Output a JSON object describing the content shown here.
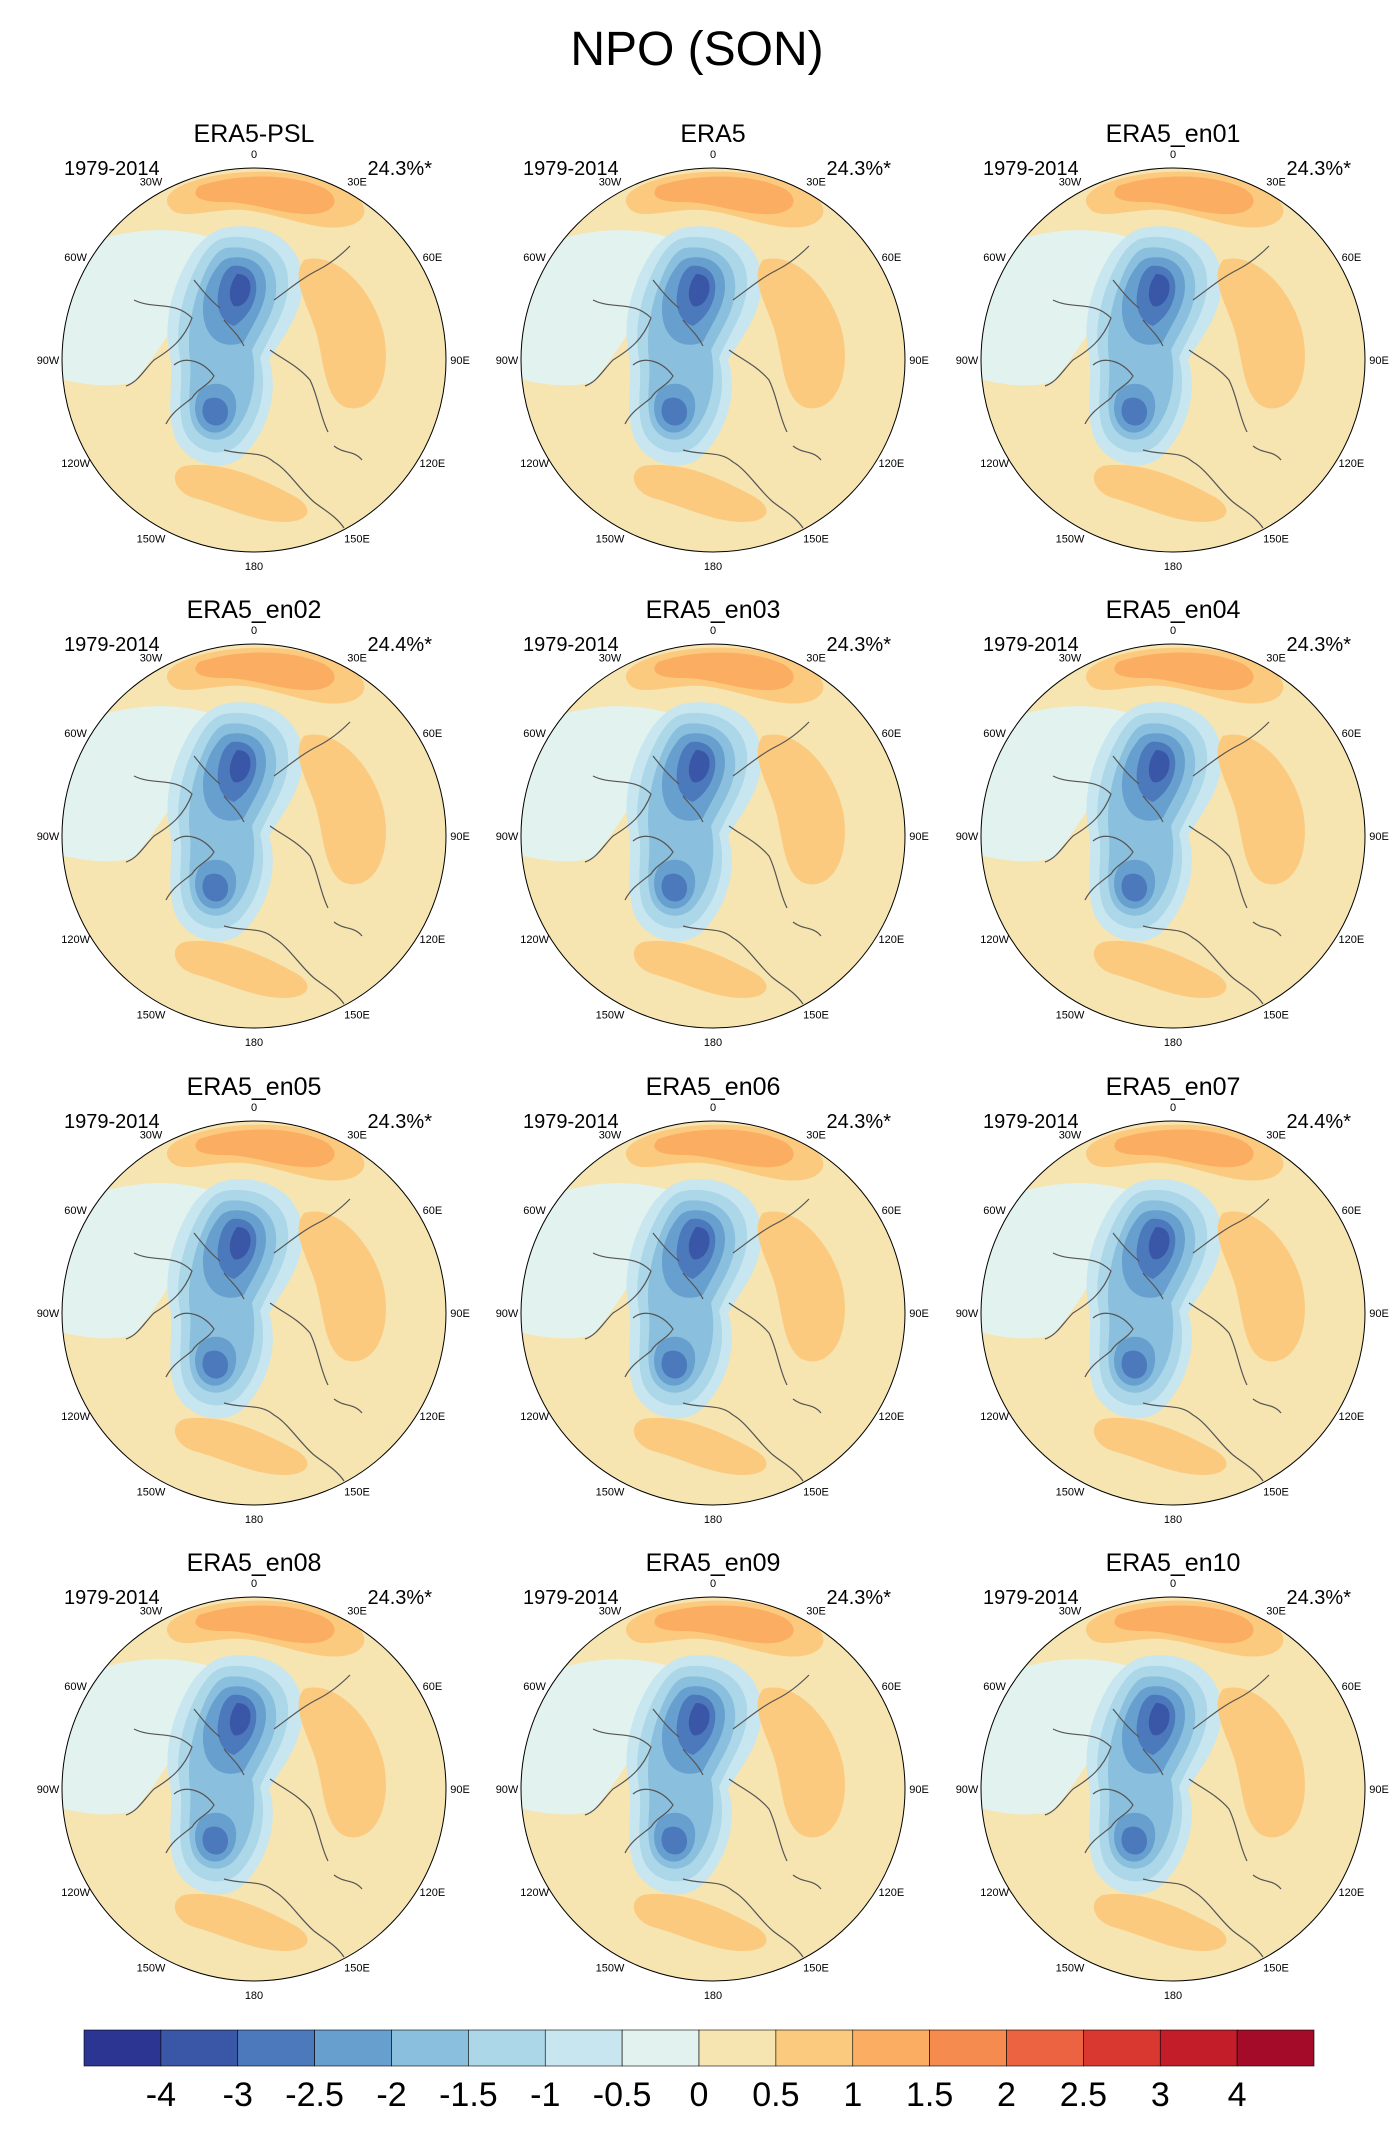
{
  "figure": {
    "title": "NPO (SON)",
    "panels": [
      {
        "name": "ERA5-PSL",
        "years": "1979-2014",
        "variance": "24.3%*"
      },
      {
        "name": "ERA5",
        "years": "1979-2014",
        "variance": "24.3%*"
      },
      {
        "name": "ERA5_en01",
        "years": "1979-2014",
        "variance": "24.3%*"
      },
      {
        "name": "ERA5_en02",
        "years": "1979-2014",
        "variance": "24.4%*"
      },
      {
        "name": "ERA5_en03",
        "years": "1979-2014",
        "variance": "24.3%*"
      },
      {
        "name": "ERA5_en04",
        "years": "1979-2014",
        "variance": "24.3%*"
      },
      {
        "name": "ERA5_en05",
        "years": "1979-2014",
        "variance": "24.3%*"
      },
      {
        "name": "ERA5_en06",
        "years": "1979-2014",
        "variance": "24.3%*"
      },
      {
        "name": "ERA5_en07",
        "years": "1979-2014",
        "variance": "24.4%*"
      },
      {
        "name": "ERA5_en08",
        "years": "1979-2014",
        "variance": "24.3%*"
      },
      {
        "name": "ERA5_en09",
        "years": "1979-2014",
        "variance": "24.3%*"
      },
      {
        "name": "ERA5_en10",
        "years": "1979-2014",
        "variance": "24.3%*"
      }
    ],
    "longitude_labels": [
      "180",
      "150E",
      "120E",
      "90E",
      "60E",
      "30E",
      "0",
      "30W",
      "60W",
      "90W",
      "120W",
      "150W"
    ]
  },
  "colorbar": {
    "ticks": [
      "-4",
      "-3",
      "-2.5",
      "-2",
      "-1.5",
      "-1",
      "-0.5",
      "0",
      "0.5",
      "1",
      "1.5",
      "2",
      "2.5",
      "3",
      "4"
    ],
    "colors": [
      "#2c3591",
      "#3a56a6",
      "#4b79bb",
      "#679fcf",
      "#8ac0de",
      "#abd7e8",
      "#c7e6f0",
      "#e2f2ee",
      "#f6e4b1",
      "#fbca7f",
      "#fbae62",
      "#f68b50",
      "#ec6342",
      "#d93830",
      "#c31d2a",
      "#a40b28"
    ]
  }
}
